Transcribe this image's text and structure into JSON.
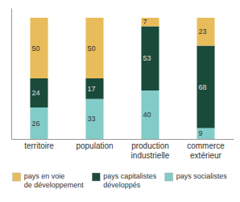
{
  "chart_data": {
    "type": "bar",
    "stacked": true,
    "categories": [
      "territoire",
      "population",
      "production\nindustrielle",
      "commerce\nextérieur"
    ],
    "series": [
      {
        "name": "pays socialistes",
        "color": "#82ccc8",
        "values": [
          26,
          33,
          40,
          9
        ]
      },
      {
        "name": "pays capitalistes\ndéveloppés",
        "color": "#1a4a3a",
        "values": [
          24,
          17,
          53,
          68
        ]
      },
      {
        "name": "pays en voie\nde développement",
        "color": "#e8bc5a",
        "values": [
          50,
          50,
          7,
          23
        ]
      }
    ],
    "ylim": [
      0,
      108
    ],
    "grid": false,
    "legend": "bottom",
    "data_labels": true,
    "tick_labels": "x"
  }
}
